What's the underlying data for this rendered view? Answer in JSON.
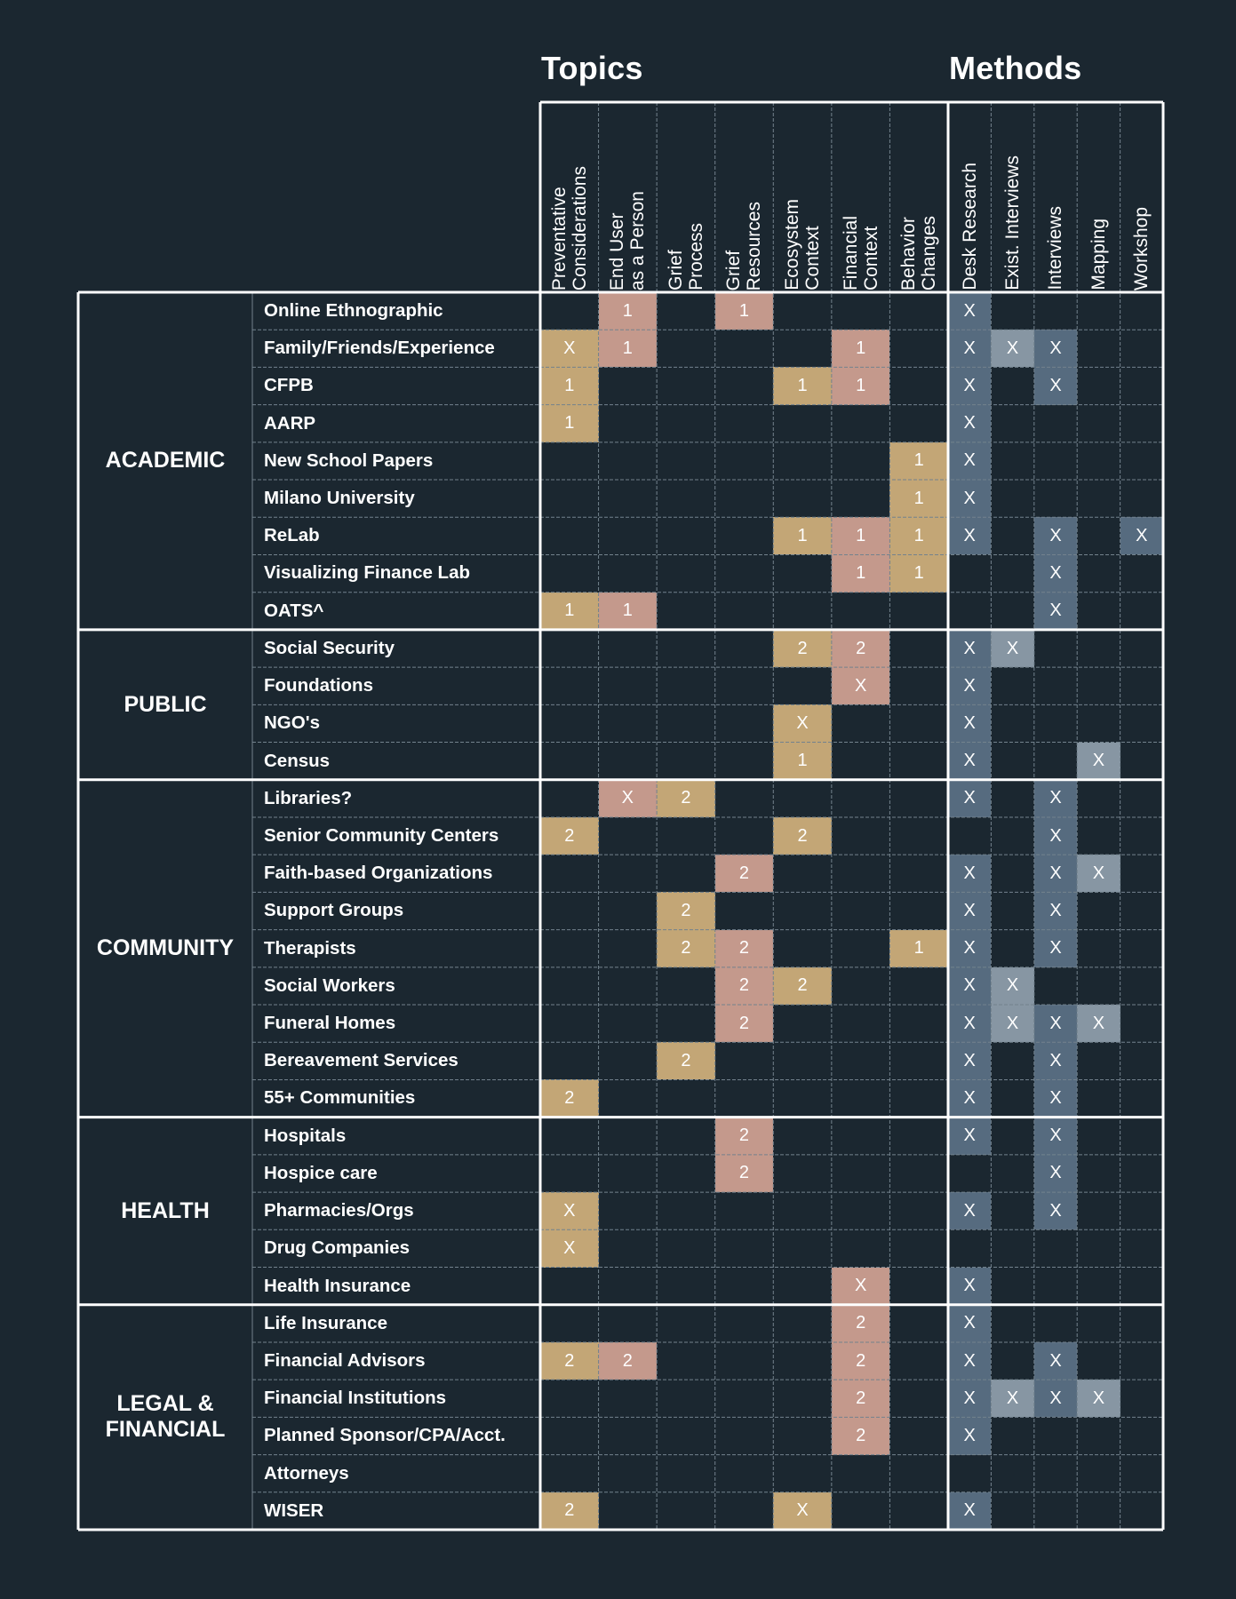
{
  "headings": {
    "topics": "Topics",
    "methods": "Methods"
  },
  "colors": {
    "background": "#1b2730",
    "tan": "#c3a676",
    "pink": "#c4998c",
    "slate": "#566b7f",
    "light_slate": "#8796a3",
    "grid_line": "#73828d",
    "border": "#ffffff"
  },
  "chart_data": {
    "type": "table",
    "topic_columns": [
      "Preventative\nConsiderations",
      "End User\nas a Person",
      "Grief\nProcess",
      "Grief\nResources",
      "Ecosystem\nContext",
      "Financial\nContext",
      "Behavior\nChanges"
    ],
    "method_columns": [
      "Desk Research",
      "Exist. Interviews",
      "Interviews",
      "Mapping",
      "Workshop"
    ],
    "groups": [
      {
        "name": "ACADEMIC",
        "rows": [
          {
            "label": "Online Ethnographic",
            "topics": [
              "",
              "1",
              "",
              "1",
              "",
              "",
              ""
            ],
            "methods": [
              "X",
              "",
              "",
              "",
              ""
            ]
          },
          {
            "label": "Family/Friends/Experience",
            "topics": [
              "X",
              "1",
              "",
              "",
              "",
              "1",
              ""
            ],
            "methods": [
              "X",
              "X",
              "X",
              "",
              ""
            ]
          },
          {
            "label": "CFPB",
            "topics": [
              "1",
              "",
              "",
              "",
              "1",
              "1",
              ""
            ],
            "methods": [
              "X",
              "",
              "X",
              "",
              ""
            ]
          },
          {
            "label": "AARP",
            "topics": [
              "1",
              "",
              "",
              "",
              "",
              "",
              ""
            ],
            "methods": [
              "X",
              "",
              "",
              "",
              ""
            ]
          },
          {
            "label": "New School Papers",
            "topics": [
              "",
              "",
              "",
              "",
              "",
              "",
              "1"
            ],
            "methods": [
              "X",
              "",
              "",
              "",
              ""
            ]
          },
          {
            "label": "Milano University",
            "topics": [
              "",
              "",
              "",
              "",
              "",
              "",
              "1"
            ],
            "methods": [
              "X",
              "",
              "",
              "",
              ""
            ]
          },
          {
            "label": "ReLab",
            "topics": [
              "",
              "",
              "",
              "",
              "1",
              "1",
              "1"
            ],
            "methods": [
              "X",
              "",
              "X",
              "",
              "X"
            ]
          },
          {
            "label": "Visualizing Finance Lab",
            "topics": [
              "",
              "",
              "",
              "",
              "",
              "1",
              "1"
            ],
            "methods": [
              "",
              "",
              "X",
              "",
              ""
            ]
          },
          {
            "label": "OATS^",
            "topics": [
              "1",
              "1",
              "",
              "",
              "",
              "",
              ""
            ],
            "methods": [
              "",
              "",
              "X",
              "",
              ""
            ]
          }
        ]
      },
      {
        "name": "PUBLIC",
        "rows": [
          {
            "label": "Social Security",
            "topics": [
              "",
              "",
              "",
              "",
              "2",
              "2",
              ""
            ],
            "methods": [
              "X",
              "X",
              "",
              "",
              ""
            ]
          },
          {
            "label": "Foundations",
            "topics": [
              "",
              "",
              "",
              "",
              "",
              "X",
              ""
            ],
            "methods": [
              "X",
              "",
              "",
              "",
              ""
            ]
          },
          {
            "label": "NGO's",
            "topics": [
              "",
              "",
              "",
              "",
              "X",
              "",
              ""
            ],
            "methods": [
              "X",
              "",
              "",
              "",
              ""
            ]
          },
          {
            "label": "Census",
            "topics": [
              "",
              "",
              "",
              "",
              "1",
              "",
              ""
            ],
            "methods": [
              "X",
              "",
              "",
              "X",
              ""
            ]
          }
        ]
      },
      {
        "name": "COMMUNITY",
        "rows": [
          {
            "label": "Libraries?",
            "topics": [
              "",
              "X",
              "2",
              "",
              "",
              "",
              ""
            ],
            "methods": [
              "X",
              "",
              "X",
              "",
              ""
            ]
          },
          {
            "label": "Senior Community Centers",
            "topics": [
              "2",
              "",
              "",
              "",
              "2",
              "",
              ""
            ],
            "methods": [
              "",
              "",
              "X",
              "",
              ""
            ]
          },
          {
            "label": "Faith-based Organizations",
            "topics": [
              "",
              "",
              "",
              "2",
              "",
              "",
              ""
            ],
            "methods": [
              "X",
              "",
              "X",
              "X",
              ""
            ]
          },
          {
            "label": "Support Groups",
            "topics": [
              "",
              "",
              "2",
              "",
              "",
              "",
              ""
            ],
            "methods": [
              "X",
              "",
              "X",
              "",
              ""
            ]
          },
          {
            "label": "Therapists",
            "topics": [
              "",
              "",
              "2",
              "2",
              "",
              "",
              "1"
            ],
            "methods": [
              "X",
              "",
              "X",
              "",
              ""
            ]
          },
          {
            "label": "Social Workers",
            "topics": [
              "",
              "",
              "",
              "2",
              "2",
              "",
              ""
            ],
            "methods": [
              "X",
              "X",
              "",
              "",
              ""
            ]
          },
          {
            "label": "Funeral Homes",
            "topics": [
              "",
              "",
              "",
              "2",
              "",
              "",
              ""
            ],
            "methods": [
              "X",
              "X",
              "X",
              "X",
              ""
            ]
          },
          {
            "label": "Bereavement Services",
            "topics": [
              "",
              "",
              "2",
              "",
              "",
              "",
              ""
            ],
            "methods": [
              "X",
              "",
              "X",
              "",
              ""
            ]
          },
          {
            "label": "55+ Communities",
            "topics": [
              "2",
              "",
              "",
              "",
              "",
              "",
              ""
            ],
            "methods": [
              "X",
              "",
              "X",
              "",
              ""
            ]
          }
        ]
      },
      {
        "name": "HEALTH",
        "rows": [
          {
            "label": "Hospitals",
            "topics": [
              "",
              "",
              "",
              "2",
              "",
              "",
              ""
            ],
            "methods": [
              "X",
              "",
              "X",
              "",
              ""
            ]
          },
          {
            "label": "Hospice care",
            "topics": [
              "",
              "",
              "",
              "2",
              "",
              "",
              ""
            ],
            "methods": [
              "",
              "",
              "X",
              "",
              ""
            ]
          },
          {
            "label": "Pharmacies/Orgs",
            "topics": [
              "X",
              "",
              "",
              "",
              "",
              "",
              ""
            ],
            "methods": [
              "X",
              "",
              "X",
              "",
              ""
            ]
          },
          {
            "label": "Drug Companies",
            "topics": [
              "X",
              "",
              "",
              "",
              "",
              "",
              ""
            ],
            "methods": [
              "",
              "",
              "",
              "",
              ""
            ]
          },
          {
            "label": "Health Insurance",
            "topics": [
              "",
              "",
              "",
              "",
              "",
              "X",
              ""
            ],
            "methods": [
              "X",
              "",
              "",
              "",
              ""
            ]
          }
        ]
      },
      {
        "name": "LEGAL &\nFINANCIAL",
        "rows": [
          {
            "label": "Life Insurance",
            "topics": [
              "",
              "",
              "",
              "",
              "",
              "2",
              ""
            ],
            "methods": [
              "X",
              "",
              "",
              "",
              ""
            ]
          },
          {
            "label": "Financial Advisors",
            "topics": [
              "2",
              "2",
              "",
              "",
              "",
              "2",
              ""
            ],
            "methods": [
              "X",
              "",
              "X",
              "",
              ""
            ]
          },
          {
            "label": "Financial Institutions",
            "topics": [
              "",
              "",
              "",
              "",
              "",
              "2",
              ""
            ],
            "methods": [
              "X",
              "X",
              "X",
              "X",
              ""
            ]
          },
          {
            "label": "Planned Sponsor/CPA/Acct.",
            "topics": [
              "",
              "",
              "",
              "",
              "",
              "2",
              ""
            ],
            "methods": [
              "X",
              "",
              "",
              "",
              ""
            ]
          },
          {
            "label": "Attorneys",
            "topics": [
              "",
              "",
              "",
              "",
              "",
              "",
              ""
            ],
            "methods": [
              "",
              "",
              "",
              "",
              ""
            ]
          },
          {
            "label": "WISER",
            "topics": [
              "2",
              "",
              "",
              "",
              "X",
              "",
              ""
            ],
            "methods": [
              "X",
              "",
              "",
              "",
              ""
            ]
          }
        ]
      }
    ],
    "topic_colors": [
      "tan",
      "pink",
      "tan",
      "pink",
      "tan",
      "pink",
      "tan"
    ],
    "method_colors": [
      "slate",
      "light_slate",
      "slate",
      "light_slate",
      "slate"
    ]
  }
}
